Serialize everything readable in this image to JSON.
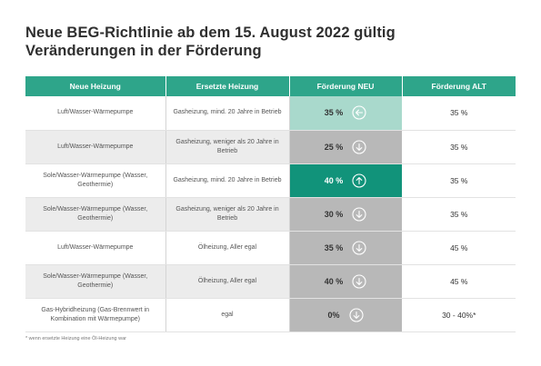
{
  "title_line1": "Neue BEG-Richtlinie ab dem 15. August 2022 gültig",
  "title_line2": "Veränderungen in der Förderung",
  "headers": [
    "Neue Heizung",
    "Ersetzte Heizung",
    "Förderung NEU",
    "Förderung ALT"
  ],
  "rows": [
    {
      "neue": "Luft/Wasser-Wärmepumpe",
      "ersetzte": "Gasheizung, mind. 20 Jahre in Betrieb",
      "neu": "35 %",
      "trend": "same",
      "alt": "35 %"
    },
    {
      "neue": "Luft/Wasser-Wärmepumpe",
      "ersetzte": "Gasheizung, weniger als 20 Jahre in Betrieb",
      "neu": "25 %",
      "trend": "down",
      "alt": "35 %"
    },
    {
      "neue": "Sole/Wasser-Wärmepumpe (Wasser, Geothermie)",
      "ersetzte": "Gasheizung, mind. 20 Jahre in Betrieb",
      "neu": "40 %",
      "trend": "up",
      "alt": "35 %"
    },
    {
      "neue": "Sole/Wasser-Wärmepumpe (Wasser, Geothermie)",
      "ersetzte": "Gasheizung, weniger als 20 Jahre in Betrieb",
      "neu": "30 %",
      "trend": "down",
      "alt": "35 %"
    },
    {
      "neue": "Luft/Wasser-Wärmepumpe",
      "ersetzte": "Ölheizung, Aller egal",
      "neu": "35 %",
      "trend": "down",
      "alt": "45 %"
    },
    {
      "neue": "Sole/Wasser-Wärmepumpe (Wasser, Geothermie)",
      "ersetzte": "Ölheizung, Aller egal",
      "neu": "40 %",
      "trend": "down",
      "alt": "45 %"
    },
    {
      "neue": "Gas-Hybridheizung (Gas-Brennwert in Kombination mit Wärmepumpe)",
      "ersetzte": "egal",
      "neu": "0%",
      "trend": "down",
      "alt": "30 - 40%*"
    }
  ],
  "footnote": "* wenn ersetzte Heizung eine Öl-Heizung war",
  "colors": {
    "header": "#2ea58a",
    "up": "#11937a",
    "same": "#a9d9cc",
    "down": "#b8b8b8"
  },
  "icons": {
    "up": "arrow-up-circle-icon",
    "down": "arrow-down-circle-icon",
    "same": "arrow-left-circle-icon"
  }
}
